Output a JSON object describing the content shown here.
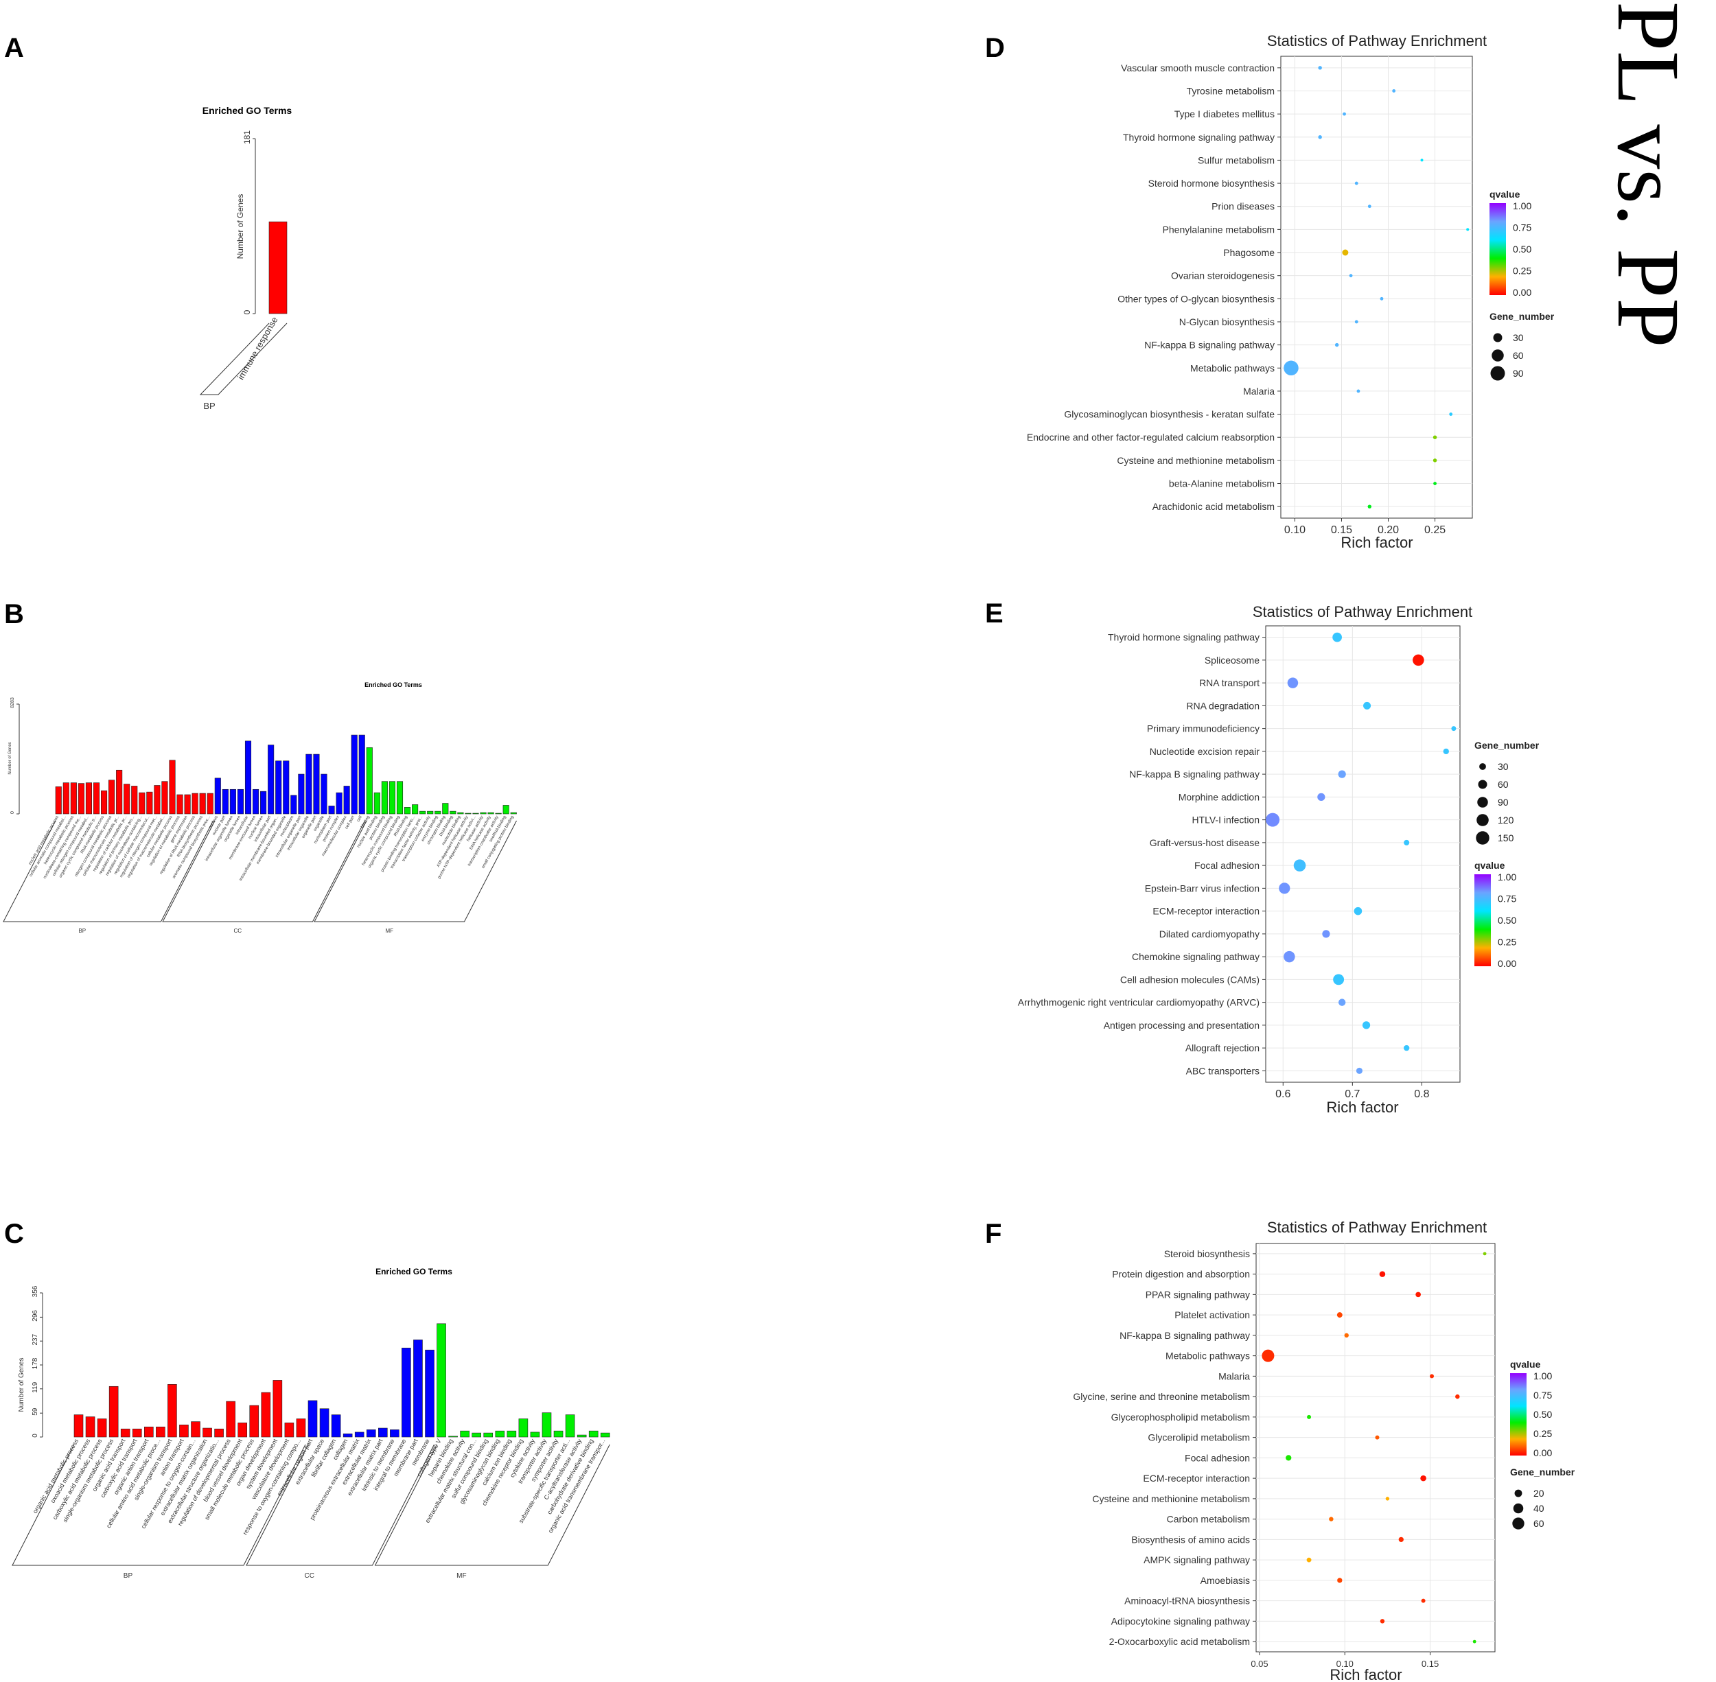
{
  "comparison_label": "PL vs. PP",
  "colors": {
    "bp": "#ff0000",
    "cc": "#0000ff",
    "mf": "#00ee00",
    "qvalue_gradient": [
      "#ff0000",
      "#ffb000",
      "#00ee00",
      "#00e5ff",
      "#6ba4ff",
      "#9400ff"
    ]
  },
  "chart_data": [
    {
      "panel": "A",
      "type": "bar",
      "title": "Enriched GO Terms",
      "ylabel": "Number of Genes",
      "ylim": [
        0,
        181
      ],
      "yticks": [
        "0",
        "181"
      ],
      "groups": [
        {
          "name": "BP",
          "categories": [
            "immune response"
          ],
          "values": [
            95
          ]
        }
      ]
    },
    {
      "panel": "B",
      "type": "bar",
      "title": "Enriched GO Terms",
      "ylabel": "Number of Genes",
      "ylim": [
        0,
        8283
      ],
      "yticks": [
        "0",
        "8283"
      ],
      "groups": [
        {
          "name": "BP",
          "categories": [
            "nucleic acid metabolic process",
            "cellular aromatic compound metabol...",
            "heterocycle metabolic process",
            "nucleobase-containing compound me...",
            "cellular nitrogen compound metabol...",
            "organic cyclic compound metabolic p...",
            "RNA metabolic process",
            "nitrogen compound metabolic process",
            "cellular macromolecule metabolic pr...",
            "regulation of cellular metabolic pr...",
            "regulation of primary metabolic pro...",
            "regulation of nucleobase-containing...",
            "regulation of cellular macromolecul...",
            "regulation of nitrogen compound met...",
            "regulation of macromolecule metabol...",
            "cellular metabolic process",
            "regulation of metabolic process",
            "gene expression",
            "regulation of RNA metabolic process",
            "RNA biosynthetic process",
            "aromatic compound biosynthetic proc..."
          ],
          "values": [
            2050,
            2350,
            2350,
            2300,
            2350,
            2350,
            1750,
            2550,
            3300,
            2250,
            2100,
            1600,
            1650,
            2150,
            2450,
            4050,
            1450,
            1450,
            1550,
            1550,
            1550
          ]
        },
        {
          "name": "CC",
          "categories": [
            "nucleus",
            "nuclear part",
            "intracellular organelle lumen",
            "organelle lumen",
            "intracellular",
            "membrane-enclosed lumen",
            "nuclear lumen",
            "intracellular part",
            "intracellular membrane-bounded organ...",
            "membrane-bounded organelle",
            "nucleoplasm",
            "intracellular organelle part",
            "intracellular organelle",
            "organelle part",
            "organelle",
            "nucleoplasm part",
            "protein complex",
            "macromolecular complex",
            "cell part",
            "cell"
          ],
          "values": [
            2700,
            1850,
            1850,
            1850,
            5500,
            1850,
            1700,
            5200,
            4000,
            4000,
            1400,
            3000,
            4500,
            4500,
            3000,
            600,
            1600,
            2100,
            5950,
            5950
          ]
        },
        {
          "name": "MF",
          "categories": [
            "binding",
            "nucleic acid binding",
            "protein binding",
            "heterocyclic compound binding",
            "organic cyclic compound binding",
            "RNA binding",
            "protein binding transcription facto...",
            "transcription factor activity, prot...",
            "transcription cofactor activity",
            "enzyme binding",
            "chromatin binding",
            "DNA binding",
            "nucleotide binding",
            "ATP-dependent helicase activity",
            "purine NTP-dependent helicase activi...",
            "helicase activity",
            "DNA helicase activity",
            "transcription coactivator activity",
            "snoRNA binding",
            "small conjugating protein binding"
          ],
          "values": [
            5000,
            1600,
            2450,
            2450,
            2450,
            500,
            700,
            200,
            200,
            200,
            800,
            200,
            100,
            50,
            50,
            100,
            100,
            50,
            650,
            100
          ]
        }
      ]
    },
    {
      "panel": "C",
      "type": "bar",
      "title": "Enriched GO Terms",
      "ylabel": "Number of Genes",
      "ylim": [
        0,
        356
      ],
      "yticks": [
        "0",
        "59",
        "119",
        "178",
        "237",
        "296",
        "356"
      ],
      "groups": [
        {
          "name": "BP",
          "categories": [
            "organic acid metabolic process",
            "oxoacid metabolic process",
            "carboxylic acid metabolic process",
            "single-organism metabolic process",
            "organic acid transport",
            "carboxylic acid transport",
            "organic anion transport",
            "cellular amino acid metabolic proce...",
            "single-organism transport",
            "anion transport",
            "cellular response to oxygen-contain...",
            "extracellular matrix organization",
            "extracellular structure organizatio...",
            "regulation of developmental process",
            "blood vessel development",
            "small molecule metabolic process",
            "organ development",
            "system development",
            "vasculature development",
            "response to oxygen-containing compo..."
          ],
          "values": [
            55,
            50,
            45,
            125,
            20,
            20,
            25,
            25,
            130,
            30,
            38,
            22,
            20,
            88,
            35,
            78,
            110,
            140,
            35,
            45
          ]
        },
        {
          "name": "CC",
          "categories": [
            "extracellular region part",
            "extracellular space",
            "fibrillar collagen",
            "collagen",
            "proteinaceous extracellular matrix",
            "extracellular matrix",
            "extracellular matrix part",
            "intrinsic to membrane",
            "integral to membrane",
            "membrane part",
            "membrane"
          ],
          "values": [
            90,
            70,
            55,
            8,
            12,
            18,
            22,
            18,
            220,
            240,
            215
          ]
        },
        {
          "name": "MF",
          "categories": [
            "collagen type V",
            "heparin binding",
            "chemokine activity",
            "extracellular matrix structural con...",
            "sulfur compound binding",
            "glycosaminoglycan binding",
            "calcium ion binding",
            "chemokine receptor binding",
            "cytokine activity",
            "transporter activity",
            "symporter activity",
            "substrate-specific transporter acti...",
            "C-acyltransferase activity",
            "carbohydrate derivative binding",
            "organic acid transmembrane transpor..."
          ],
          "values": [
            280,
            2,
            15,
            10,
            10,
            15,
            15,
            45,
            12,
            60,
            15,
            55,
            5,
            15,
            10
          ]
        }
      ]
    },
    {
      "panel": "D",
      "type": "scatter",
      "title": "Statistics of Pathway Enrichment",
      "xlabel": "Rich factor",
      "xlim": [
        0.085,
        0.29
      ],
      "xticks": [
        "0.10",
        "0.15",
        "0.20",
        "0.25"
      ],
      "size_legend_title": "Gene_number",
      "size_legend_values": [
        30,
        60,
        90
      ],
      "color_legend_title": "qvalue",
      "color_legend_ticks": [
        "1.00",
        "0.75",
        "0.50",
        "0.25",
        "0.00"
      ],
      "points": [
        {
          "pathway": "Vascular smooth muscle contraction",
          "rich_factor": 0.127,
          "gene_number": 3,
          "qvalue": 0.75
        },
        {
          "pathway": "Tyrosine metabolism",
          "rich_factor": 0.206,
          "gene_number": 2,
          "qvalue": 0.75
        },
        {
          "pathway": "Type I diabetes mellitus",
          "rich_factor": 0.153,
          "gene_number": 2,
          "qvalue": 0.75
        },
        {
          "pathway": "Thyroid hormone signaling pathway",
          "rich_factor": 0.127,
          "gene_number": 3,
          "qvalue": 0.75
        },
        {
          "pathway": "Sulfur metabolism",
          "rich_factor": 0.236,
          "gene_number": 1,
          "qvalue": 0.6
        },
        {
          "pathway": "Steroid hormone biosynthesis",
          "rich_factor": 0.166,
          "gene_number": 2,
          "qvalue": 0.75
        },
        {
          "pathway": "Prion diseases",
          "rich_factor": 0.18,
          "gene_number": 2,
          "qvalue": 0.75
        },
        {
          "pathway": "Phenylalanine metabolism",
          "rich_factor": 0.285,
          "gene_number": 1,
          "qvalue": 0.6
        },
        {
          "pathway": "Phagosome",
          "rich_factor": 0.154,
          "gene_number": 12,
          "qvalue": 0.22
        },
        {
          "pathway": "Ovarian steroidogenesis",
          "rich_factor": 0.16,
          "gene_number": 2,
          "qvalue": 0.75
        },
        {
          "pathway": "Other types of O-glycan biosynthesis",
          "rich_factor": 0.193,
          "gene_number": 2,
          "qvalue": 0.75
        },
        {
          "pathway": "N-Glycan biosynthesis",
          "rich_factor": 0.166,
          "gene_number": 2,
          "qvalue": 0.75
        },
        {
          "pathway": "NF-kappa B signaling pathway",
          "rich_factor": 0.145,
          "gene_number": 3,
          "qvalue": 0.75
        },
        {
          "pathway": "Metabolic pathways",
          "rich_factor": 0.096,
          "gene_number": 95,
          "qvalue": 0.75
        },
        {
          "pathway": "Malaria",
          "rich_factor": 0.168,
          "gene_number": 2,
          "qvalue": 0.75
        },
        {
          "pathway": "Glycosaminoglycan biosynthesis - keratan sulfate",
          "rich_factor": 0.267,
          "gene_number": 2,
          "qvalue": 0.68
        },
        {
          "pathway": "Endocrine and other factor-regulated calcium reabsorption",
          "rich_factor": 0.25,
          "gene_number": 3,
          "qvalue": 0.3
        },
        {
          "pathway": "Cysteine and methionine metabolism",
          "rich_factor": 0.25,
          "gene_number": 3,
          "qvalue": 0.3
        },
        {
          "pathway": "beta-Alanine metabolism",
          "rich_factor": 0.25,
          "gene_number": 2,
          "qvalue": 0.42
        },
        {
          "pathway": "Arachidonic acid metabolism",
          "rich_factor": 0.18,
          "gene_number": 3,
          "qvalue": 0.42
        }
      ]
    },
    {
      "panel": "E",
      "type": "scatter",
      "title": "Statistics of Pathway Enrichment",
      "xlabel": "Rich factor",
      "xlim": [
        0.575,
        0.855
      ],
      "xticks": [
        "0.6",
        "0.7",
        "0.8"
      ],
      "size_legend_title": "Gene_number",
      "size_legend_values": [
        30,
        60,
        90,
        120,
        150
      ],
      "color_legend_title": "qvalue",
      "color_legend_ticks": [
        "1.00",
        "0.75",
        "0.50",
        "0.25",
        "0.00"
      ],
      "points": [
        {
          "pathway": "Thyroid hormone signaling pathway",
          "rich_factor": 0.678,
          "gene_number": 68,
          "qvalue": 0.7
        },
        {
          "pathway": "Spliceosome",
          "rich_factor": 0.795,
          "gene_number": 105,
          "qvalue": 0.02
        },
        {
          "pathway": "RNA transport",
          "rich_factor": 0.614,
          "gene_number": 90,
          "qvalue": 0.82
        },
        {
          "pathway": "RNA degradation",
          "rich_factor": 0.721,
          "gene_number": 40,
          "qvalue": 0.7
        },
        {
          "pathway": "Primary immunodeficiency",
          "rich_factor": 0.846,
          "gene_number": 12,
          "qvalue": 0.7
        },
        {
          "pathway": "Nucleotide excision repair",
          "rich_factor": 0.835,
          "gene_number": 20,
          "qvalue": 0.7
        },
        {
          "pathway": "NF-kappa B signaling pathway",
          "rich_factor": 0.685,
          "gene_number": 42,
          "qvalue": 0.8
        },
        {
          "pathway": "Morphine addiction",
          "rich_factor": 0.655,
          "gene_number": 42,
          "qvalue": 0.82
        },
        {
          "pathway": "HTLV-I infection",
          "rich_factor": 0.585,
          "gene_number": 160,
          "qvalue": 0.83
        },
        {
          "pathway": "Graft-versus-host disease",
          "rich_factor": 0.778,
          "gene_number": 18,
          "qvalue": 0.7
        },
        {
          "pathway": "Focal adhesion",
          "rich_factor": 0.624,
          "gene_number": 120,
          "qvalue": 0.72
        },
        {
          "pathway": "Epstein-Barr virus infection",
          "rich_factor": 0.602,
          "gene_number": 100,
          "qvalue": 0.82
        },
        {
          "pathway": "ECM-receptor interaction",
          "rich_factor": 0.708,
          "gene_number": 45,
          "qvalue": 0.7
        },
        {
          "pathway": "Dilated cardiomyopathy",
          "rich_factor": 0.662,
          "gene_number": 42,
          "qvalue": 0.82
        },
        {
          "pathway": "Chemokine signaling pathway",
          "rich_factor": 0.609,
          "gene_number": 105,
          "qvalue": 0.82
        },
        {
          "pathway": "Cell adhesion molecules (CAMs)",
          "rich_factor": 0.68,
          "gene_number": 95,
          "qvalue": 0.7
        },
        {
          "pathway": "Arrhythmogenic right ventricular cardiomyopathy (ARVC)",
          "rich_factor": 0.685,
          "gene_number": 35,
          "qvalue": 0.8
        },
        {
          "pathway": "Antigen processing and presentation",
          "rich_factor": 0.72,
          "gene_number": 42,
          "qvalue": 0.7
        },
        {
          "pathway": "Allograft rejection",
          "rich_factor": 0.778,
          "gene_number": 20,
          "qvalue": 0.7
        },
        {
          "pathway": "ABC transporters",
          "rich_factor": 0.71,
          "gene_number": 25,
          "qvalue": 0.8
        }
      ]
    },
    {
      "panel": "F",
      "type": "scatter",
      "title": "Statistics of Pathway Enrichment",
      "xlabel": "Rich factor",
      "xlim": [
        0.048,
        0.188
      ],
      "xticks": [
        "0.05",
        "0.10",
        "0.15"
      ],
      "size_legend_title": "Gene_number",
      "size_legend_values": [
        20,
        40,
        60
      ],
      "color_legend_title": "qvalue",
      "color_legend_ticks": [
        "1.00",
        "0.75",
        "0.50",
        "0.25",
        "0.00"
      ],
      "points": [
        {
          "pathway": "Steroid biosynthesis",
          "rich_factor": 0.182,
          "gene_number": 2,
          "qvalue": 0.3
        },
        {
          "pathway": "Protein digestion and absorption",
          "rich_factor": 0.122,
          "gene_number": 11,
          "qvalue": 0.02
        },
        {
          "pathway": "PPAR signaling pathway",
          "rich_factor": 0.143,
          "gene_number": 8,
          "qvalue": 0.03
        },
        {
          "pathway": "Platelet activation",
          "rich_factor": 0.097,
          "gene_number": 9,
          "qvalue": 0.08
        },
        {
          "pathway": "NF-kappa B signaling pathway",
          "rich_factor": 0.101,
          "gene_number": 5,
          "qvalue": 0.12
        },
        {
          "pathway": "Metabolic pathways",
          "rich_factor": 0.055,
          "gene_number": 65,
          "qvalue": 0.05
        },
        {
          "pathway": "Malaria",
          "rich_factor": 0.151,
          "gene_number": 4,
          "qvalue": 0.05
        },
        {
          "pathway": "Glycine, serine and threonine metabolism",
          "rich_factor": 0.166,
          "gene_number": 5,
          "qvalue": 0.05
        },
        {
          "pathway": "Glycerophospholipid metabolism",
          "rich_factor": 0.079,
          "gene_number": 4,
          "qvalue": 0.38
        },
        {
          "pathway": "Glycerolipid metabolism",
          "rich_factor": 0.119,
          "gene_number": 4,
          "qvalue": 0.1
        },
        {
          "pathway": "Focal adhesion",
          "rich_factor": 0.067,
          "gene_number": 10,
          "qvalue": 0.38
        },
        {
          "pathway": "ECM-receptor interaction",
          "rich_factor": 0.146,
          "gene_number": 11,
          "qvalue": 0.02
        },
        {
          "pathway": "Cysteine and methionine metabolism",
          "rich_factor": 0.125,
          "gene_number": 3,
          "qvalue": 0.2
        },
        {
          "pathway": "Carbon metabolism",
          "rich_factor": 0.092,
          "gene_number": 5,
          "qvalue": 0.12
        },
        {
          "pathway": "Biosynthesis of amino acids",
          "rich_factor": 0.133,
          "gene_number": 7,
          "qvalue": 0.05
        },
        {
          "pathway": "AMPK signaling pathway",
          "rich_factor": 0.079,
          "gene_number": 6,
          "qvalue": 0.2
        },
        {
          "pathway": "Amoebiasis",
          "rich_factor": 0.097,
          "gene_number": 7,
          "qvalue": 0.08
        },
        {
          "pathway": "Aminoacyl-tRNA biosynthesis",
          "rich_factor": 0.146,
          "gene_number": 4,
          "qvalue": 0.05
        },
        {
          "pathway": "Adipocytokine signaling pathway",
          "rich_factor": 0.122,
          "gene_number": 5,
          "qvalue": 0.05
        },
        {
          "pathway": "2-Oxocarboxylic acid metabolism",
          "rich_factor": 0.176,
          "gene_number": 2,
          "qvalue": 0.38
        }
      ]
    }
  ]
}
